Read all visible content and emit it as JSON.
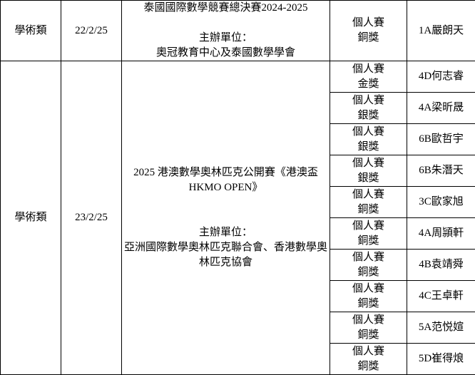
{
  "colors": {
    "background": "#ffffff",
    "border": "#000000",
    "text": "#000000"
  },
  "table": {
    "sections": [
      {
        "category": "學術類",
        "date": "22/2/25",
        "event_title": "泰國國際數學競賽總決賽2024-2025",
        "organizer_label": "主辦單位：",
        "organizer": "奧冠教育中心及泰國數學學會",
        "awards": [
          {
            "award_line1": "個人賽",
            "award_line2": "銅獎",
            "student": "1A嚴朗天"
          }
        ]
      },
      {
        "category": "學術類",
        "date": "23/2/25",
        "event_title": "2025 港澳數學奧林匹克公開賽《港澳盃 HKMO OPEN》",
        "organizer_label": "主辦單位：",
        "organizer": "亞洲國際數學奧林匹克聯合會、香港數學奧林匹克協會",
        "awards": [
          {
            "award_line1": "個人賽",
            "award_line2": "金獎",
            "student": "4D何志睿"
          },
          {
            "award_line1": "個人賽",
            "award_line2": "銀獎",
            "student": "4A梁昕晟"
          },
          {
            "award_line1": "個人賽",
            "award_line2": "銀獎",
            "student": "6B歐哲宇"
          },
          {
            "award_line1": "個人賽",
            "award_line2": "銀獎",
            "student": "6B朱潛天"
          },
          {
            "award_line1": "個人賽",
            "award_line2": "銅獎",
            "student": "3C歐家旭"
          },
          {
            "award_line1": "個人賽",
            "award_line2": "銅獎",
            "student": "4A周頴軒"
          },
          {
            "award_line1": "個人賽",
            "award_line2": "銅獎",
            "student": "4B袁靖舜"
          },
          {
            "award_line1": "個人賽",
            "award_line2": "銅獎",
            "student": "4C王卓軒"
          },
          {
            "award_line1": "個人賽",
            "award_line2": "銅獎",
            "student": "5A范悦媗"
          },
          {
            "award_line1": "個人賽",
            "award_line2": "銅獎",
            "student": "5D崔得烺"
          }
        ]
      }
    ]
  }
}
